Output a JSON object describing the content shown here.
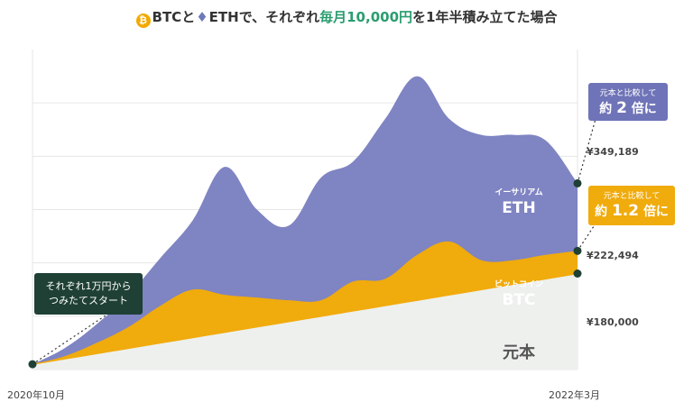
{
  "title": {
    "btc_icon": "₿",
    "btc": "BTC",
    "to": "と",
    "eth_icon": "♦",
    "eth": "ETH",
    "mid": "で、それぞれ",
    "highlight": "毎月10,000円",
    "tail": "を1年半積み立てた場合"
  },
  "callouts": {
    "start": [
      "それぞれ1万円から",
      "つみたてスタート"
    ],
    "eth_small": "元本と比較して",
    "eth_pre": "約",
    "eth_num": "2",
    "eth_post": "倍に",
    "btc_small": "元本と比較して",
    "btc_pre": "約",
    "btc_num": "1.2",
    "btc_post": "倍に"
  },
  "chart_data": {
    "type": "area",
    "x": [
      "2020-10",
      "2020-11",
      "2020-12",
      "2021-01",
      "2021-02",
      "2021-03",
      "2021-04",
      "2021-05",
      "2021-06",
      "2021-07",
      "2021-08",
      "2021-09",
      "2021-10",
      "2021-11",
      "2021-12",
      "2022-01",
      "2022-02",
      "2022-03"
    ],
    "xlabels": [
      "2020年10月",
      "2022年3月"
    ],
    "series": [
      {
        "name": "元本",
        "color": "#eef0ee",
        "values": [
          10000,
          20000,
          30000,
          40000,
          50000,
          60000,
          70000,
          80000,
          90000,
          100000,
          110000,
          120000,
          130000,
          140000,
          150000,
          160000,
          170000,
          180000
        ]
      },
      {
        "name": "ビットコイン BTC",
        "color": "#f0ab0c",
        "values": [
          10000,
          25000,
          50000,
          80000,
          120000,
          150000,
          140000,
          135000,
          130000,
          130000,
          165000,
          170000,
          215000,
          240000,
          205000,
          205000,
          215000,
          222494
        ]
      },
      {
        "name": "イーサリアム ETH",
        "color": "#7f84c2",
        "values": [
          10000,
          40000,
          85000,
          140000,
          210000,
          280000,
          380000,
          300000,
          270000,
          360000,
          390000,
          470000,
          550000,
          470000,
          440000,
          440000,
          430000,
          349189
        ]
      }
    ],
    "end_labels": [
      "¥349,189",
      "¥222,494",
      "¥180,000"
    ],
    "area_labels": {
      "eth_small": "イーサリアム",
      "eth": "ETH",
      "btc_small": "ビットコイン",
      "btc": "BTC",
      "base": "元本"
    },
    "ylim": [
      0,
      600000
    ]
  }
}
